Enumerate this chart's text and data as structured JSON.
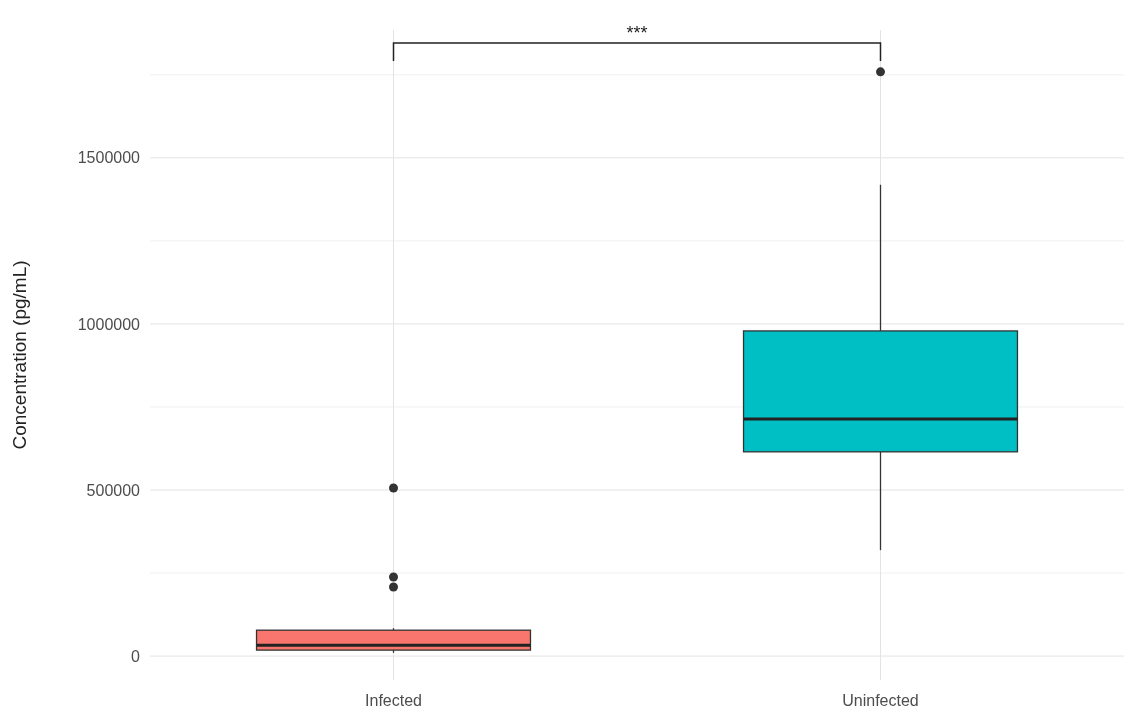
{
  "chart_data": {
    "type": "box",
    "ylabel": "Concentration (pg/mL)",
    "categories": [
      "Infected",
      "Uninfected"
    ],
    "ylim": [
      -72000,
      1885000
    ],
    "yticks": [
      0,
      {
        "value": 250000,
        "label": null
      },
      500000,
      {
        "value": 750000,
        "label": null
      },
      1000000,
      {
        "value": 1250000,
        "label": null
      },
      1500000,
      {
        "value": 1750000,
        "label": null
      }
    ],
    "grid": true,
    "series": [
      {
        "colors": [
          "#f8766d",
          "#00bfc4"
        ],
        "boxes": [
          {
            "low": 10000,
            "q1": 18000,
            "median": 33000,
            "q3": 78000,
            "high": 84000,
            "outliers": [
              506000,
              238000,
              208000
            ]
          },
          {
            "low": 319000,
            "q1": 615000,
            "median": 714000,
            "q3": 979000,
            "high": 1419000,
            "outliers": [
              1759000
            ]
          }
        ]
      }
    ],
    "annotations": [
      "***"
    ]
  }
}
